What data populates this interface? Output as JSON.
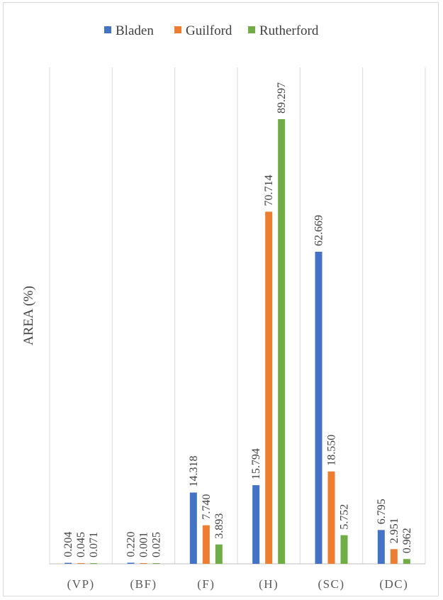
{
  "chart_data": {
    "type": "bar",
    "title": "",
    "xlabel": "",
    "ylabel": "AREA (%)",
    "categories": [
      "(VP)",
      "(BF)",
      "(F)",
      "(H)",
      "(SC)",
      "(DC)"
    ],
    "series": [
      {
        "name": "Bladen",
        "color": "#4472c4",
        "values": [
          0.204,
          0.22,
          14.318,
          15.794,
          62.669,
          6.795
        ],
        "labels": [
          "0.204",
          "0.220",
          "14.318",
          "15.794",
          "62.669",
          "6.795"
        ]
      },
      {
        "name": "Guilford",
        "color": "#ed7d31",
        "values": [
          0.045,
          0.001,
          7.74,
          70.714,
          18.55,
          2.951
        ],
        "labels": [
          "0.045",
          "0.001",
          "7.740",
          "70.714",
          "18.550",
          "2.951"
        ]
      },
      {
        "name": "Rutherford",
        "color": "#70ad47",
        "values": [
          0.071,
          0.025,
          3.893,
          89.297,
          5.752,
          0.962
        ],
        "labels": [
          "0.071",
          "0.025",
          "3.893",
          "89.297",
          "5.752",
          "0.962"
        ]
      }
    ],
    "ylim": [
      0,
      100
    ],
    "grid": "vertical",
    "legend": "top-center"
  }
}
